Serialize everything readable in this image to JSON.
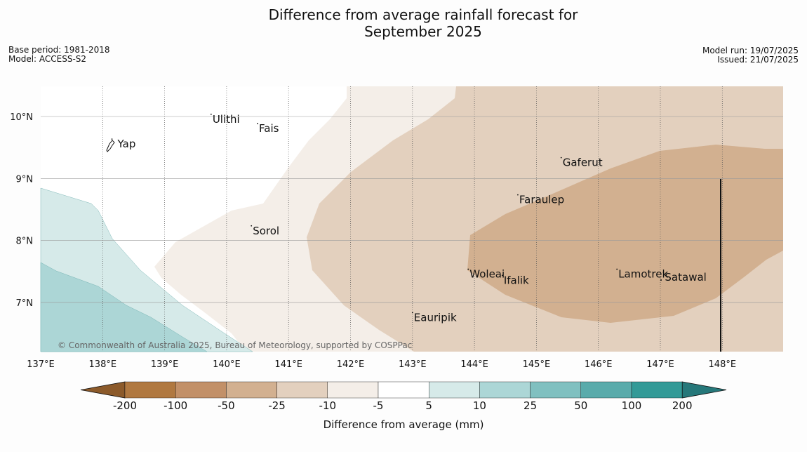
{
  "title": {
    "line1": "Difference from average rainfall forecast for",
    "line2": "September 2025"
  },
  "meta": {
    "base_period": "Base period: 1981-2018",
    "model": "Model: ACCESS-S2",
    "model_run": "Model run: 19/07/2025",
    "issued": "Issued: 21/07/2025"
  },
  "map": {
    "lon_range": [
      137,
      149
    ],
    "lat_range": [
      6.3,
      10.5
    ],
    "lon_ticks": [
      "137°E",
      "138°E",
      "139°E",
      "140°E",
      "141°E",
      "142°E",
      "143°E",
      "144°E",
      "145°E",
      "146°E",
      "147°E",
      "148°E"
    ],
    "lat_ticks": [
      "10°N",
      "9°N",
      "8°N",
      "7°N"
    ],
    "places": [
      {
        "name": "Ulithi",
        "lon": 139.75,
        "lat": 9.9
      },
      {
        "name": "Fais",
        "lon": 140.5,
        "lat": 9.75
      },
      {
        "name": "Yap",
        "lon": 138.15,
        "lat": 9.5
      },
      {
        "name": "Gaferut",
        "lon": 145.4,
        "lat": 9.2
      },
      {
        "name": "Faraulep",
        "lon": 144.7,
        "lat": 8.6
      },
      {
        "name": "Sorol",
        "lon": 140.4,
        "lat": 8.1
      },
      {
        "name": "Lamotrek",
        "lon": 146.3,
        "lat": 7.4
      },
      {
        "name": "Woleai",
        "lon": 143.9,
        "lat": 7.4
      },
      {
        "name": "Ifalik",
        "lon": 144.45,
        "lat": 7.3
      },
      {
        "name": "Satawal",
        "lon": 147.05,
        "lat": 7.35
      },
      {
        "name": "Eauripik",
        "lon": 143.0,
        "lat": 6.7
      }
    ],
    "copyright": "© Commonwealth of Australia 2025, Bureau of Meteorology, supported by COSPPac"
  },
  "colorbar": {
    "title": "Difference from average (mm)",
    "labels": [
      "-200",
      "-100",
      "-50",
      "-25",
      "-10",
      "-5",
      "5",
      "10",
      "25",
      "50",
      "100",
      "200"
    ],
    "colors": [
      "#8c5a2a",
      "#b07840",
      "#c29068",
      "#d2b090",
      "#e3d0be",
      "#f4eee8",
      "#ffffff",
      "#d6eae9",
      "#acd6d6",
      "#80c0c0",
      "#5aabab",
      "#339a97",
      "#26787a"
    ]
  }
}
